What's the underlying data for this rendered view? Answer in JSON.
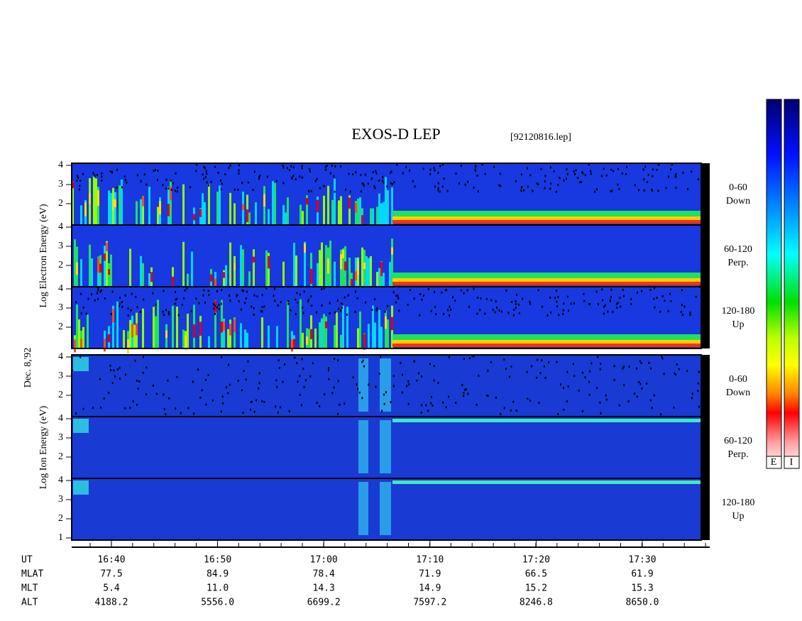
{
  "title": "EXOS-D LEP",
  "file_name": "[92120816.lep]",
  "date": "Dec. 8,'92",
  "groups": [
    {
      "axis_label": "Log Electron Energy (eV)",
      "panels": [
        {
          "pitch_angle": "0-60",
          "direction": "Down",
          "yticks": [
            "4",
            "3",
            "2"
          ]
        },
        {
          "pitch_angle": "60-120",
          "direction": "Perp.",
          "yticks": [
            "4",
            "3",
            "2"
          ]
        },
        {
          "pitch_angle": "120-180",
          "direction": "Up",
          "yticks": [
            "4",
            "3",
            "2"
          ]
        }
      ]
    },
    {
      "axis_label": "Log Ion Energy (eV)",
      "panels": [
        {
          "pitch_angle": "0-60",
          "direction": "Down",
          "yticks": [
            "4",
            "3",
            "2"
          ]
        },
        {
          "pitch_angle": "60-120",
          "direction": "Perp.",
          "yticks": [
            "4",
            "3",
            "2"
          ]
        },
        {
          "pitch_angle": "120-180",
          "direction": "Up",
          "yticks": [
            "4",
            "3",
            "2",
            "1"
          ]
        }
      ]
    }
  ],
  "colorbar_labels": [
    "E",
    "I"
  ],
  "time_axis": {
    "rows": [
      {
        "label": "UT",
        "values": [
          "16:40",
          "16:50",
          "17:00",
          "17:10",
          "17:20",
          "17:30"
        ]
      },
      {
        "label": "MLAT",
        "values": [
          "77.5",
          "84.9",
          "78.4",
          "71.9",
          "66.5",
          "61.9"
        ]
      },
      {
        "label": "MLT",
        "values": [
          "5.4",
          "11.0",
          "14.3",
          "14.9",
          "15.2",
          "15.3"
        ]
      },
      {
        "label": "ALT",
        "values": [
          "4188.2",
          "5556.0",
          "6699.2",
          "7597.2",
          "8246.8",
          "8650.0"
        ]
      }
    ]
  }
}
